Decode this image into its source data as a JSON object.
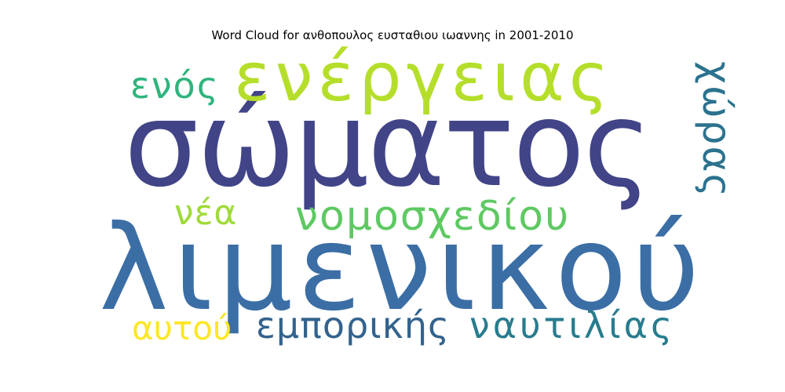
{
  "chart_data": {
    "type": "wordcloud",
    "title": "Word Cloud for ανθοπουλος ευσταθιου ιωαννης in 2001-2010",
    "words": [
      {
        "text": "λιμενικού",
        "weight": 1.0,
        "color": "#3b6ea5",
        "orientation": "horizontal"
      },
      {
        "text": "σώματος",
        "weight": 1.0,
        "color": "#414487",
        "orientation": "horizontal"
      },
      {
        "text": "ενέργειας",
        "weight": 0.6,
        "color": "#b5de2b",
        "orientation": "horizontal"
      },
      {
        "text": "νομοσχεδίου",
        "weight": 0.35,
        "color": "#5ec962",
        "orientation": "horizontal"
      },
      {
        "text": "χώρας",
        "weight": 0.35,
        "color": "#2c728e",
        "orientation": "vertical"
      },
      {
        "text": "εμπορικής",
        "weight": 0.3,
        "color": "#33638d",
        "orientation": "horizontal"
      },
      {
        "text": "ναυτιλίας",
        "weight": 0.3,
        "color": "#287c8e",
        "orientation": "horizontal"
      },
      {
        "text": "ενός",
        "weight": 0.3,
        "color": "#2fb47c",
        "orientation": "horizontal"
      },
      {
        "text": "νέα",
        "weight": 0.3,
        "color": "#a0da39",
        "orientation": "horizontal"
      },
      {
        "text": "αυτού",
        "weight": 0.28,
        "color": "#fde725",
        "orientation": "horizontal"
      }
    ]
  }
}
